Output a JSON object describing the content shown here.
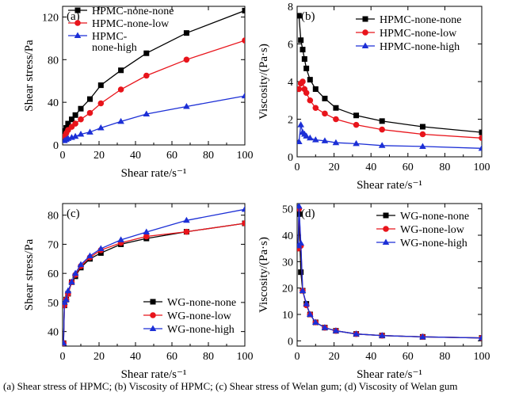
{
  "caption": "(a) Shear stress of HPMC; (b) Viscosity of HPMC; (c) Shear stress of Welan gum; (d) Viscosity of Welan gum",
  "colors": {
    "none": "#000000",
    "low": "#e8141b",
    "high": "#1c2fd6"
  },
  "chart_data": [
    {
      "panel": "(a)",
      "type": "line",
      "xlabel": "Shear rate/s⁻¹",
      "ylabel": "Shear stress/Pa",
      "xlim": [
        0,
        100
      ],
      "ylim": [
        0,
        130
      ],
      "xticks": [
        0,
        20,
        40,
        60,
        80,
        100
      ],
      "yticks": [
        0,
        40,
        80,
        120
      ],
      "legend_position": "top-left",
      "series": [
        {
          "name": "HPMC-none-none",
          "legend": [
            "HPMC-none-none"
          ],
          "marker": "square",
          "color": "#000000",
          "x": [
            1,
            2,
            3,
            5,
            7,
            10,
            15,
            21,
            32,
            46,
            68,
            100
          ],
          "y": [
            13,
            16,
            20,
            24,
            28,
            34,
            43,
            56,
            70,
            86,
            105,
            126
          ]
        },
        {
          "name": "HPMC-none-low",
          "legend": [
            "HPMC-none-low"
          ],
          "marker": "circle",
          "color": "#e8141b",
          "x": [
            1,
            2,
            3,
            5,
            7,
            10,
            15,
            21,
            32,
            46,
            68,
            100
          ],
          "y": [
            8,
            11,
            14,
            17,
            20,
            24,
            30,
            39,
            52,
            65,
            80,
            98
          ]
        },
        {
          "name": "HPMC-none-high",
          "legend": [
            "HPMC-",
            "none-high"
          ],
          "marker": "triangle",
          "color": "#1c2fd6",
          "x": [
            1,
            2,
            3,
            5,
            7,
            10,
            15,
            21,
            32,
            46,
            68,
            100
          ],
          "y": [
            4,
            5,
            6,
            7,
            8,
            10,
            12,
            16,
            22,
            29,
            36,
            46
          ]
        }
      ]
    },
    {
      "panel": "(b)",
      "type": "line",
      "xlabel": "Shear rate/s⁻¹",
      "ylabel": "Viscosity/(Pa·s)",
      "xlim": [
        0,
        100
      ],
      "ylim": [
        0,
        8
      ],
      "xticks": [
        0,
        20,
        40,
        60,
        80,
        100
      ],
      "yticks": [
        0,
        2,
        4,
        6,
        8
      ],
      "legend_position": "top-right",
      "series": [
        {
          "name": "HPMC-none-none",
          "marker": "square",
          "color": "#000000",
          "x": [
            1,
            2,
            3,
            4,
            5,
            7,
            10,
            15,
            21,
            32,
            46,
            68,
            100
          ],
          "y": [
            7.5,
            6.2,
            5.7,
            5.2,
            4.7,
            4.1,
            3.6,
            3.1,
            2.6,
            2.2,
            1.9,
            1.6,
            1.3
          ]
        },
        {
          "name": "HPMC-none-low",
          "marker": "circle",
          "color": "#e8141b",
          "x": [
            1,
            2,
            3,
            4,
            5,
            7,
            10,
            15,
            21,
            32,
            46,
            68,
            100
          ],
          "y": [
            3.6,
            3.9,
            4.0,
            3.6,
            3.4,
            3.0,
            2.6,
            2.3,
            2.0,
            1.7,
            1.45,
            1.2,
            1.0
          ]
        },
        {
          "name": "HPMC-none-high",
          "marker": "triangle",
          "color": "#1c2fd6",
          "x": [
            1,
            2,
            3,
            4,
            5,
            7,
            10,
            15,
            21,
            32,
            46,
            68,
            100
          ],
          "y": [
            0.8,
            1.7,
            1.3,
            1.2,
            1.1,
            1.0,
            0.9,
            0.85,
            0.75,
            0.7,
            0.6,
            0.55,
            0.45
          ]
        }
      ]
    },
    {
      "panel": "(c)",
      "type": "line",
      "xlabel": "Shear rate/s⁻¹",
      "ylabel": "Shear stress/Pa",
      "xlim": [
        0,
        100
      ],
      "ylim": [
        35,
        84
      ],
      "xticks": [
        0,
        20,
        40,
        60,
        80,
        100
      ],
      "yticks": [
        40,
        50,
        60,
        70,
        80
      ],
      "legend_position": "bottom-right",
      "series": [
        {
          "name": "WG-none-none",
          "marker": "square",
          "color": "#000000",
          "x": [
            0.5,
            1,
            2,
            3,
            5,
            7,
            10,
            15,
            21,
            32,
            46,
            68,
            100
          ],
          "y": [
            36,
            49,
            51,
            53,
            57,
            59,
            62,
            65,
            67,
            70,
            72,
            74.3,
            77.2
          ]
        },
        {
          "name": "WG-none-low",
          "marker": "circle",
          "color": "#e8141b",
          "x": [
            0.5,
            1,
            2,
            3,
            5,
            7,
            10,
            15,
            21,
            32,
            46,
            68,
            100
          ],
          "y": [
            36,
            49,
            51,
            53,
            57,
            59.5,
            62.5,
            65.5,
            68,
            70.5,
            72.7,
            74.3,
            77.2
          ]
        },
        {
          "name": "WG-none-high",
          "marker": "triangle",
          "color": "#1c2fd6",
          "x": [
            0.5,
            1,
            2,
            3,
            5,
            7,
            10,
            15,
            21,
            32,
            46,
            68,
            100
          ],
          "y": [
            36,
            50,
            51,
            54,
            57,
            60,
            63,
            66,
            68.5,
            71.5,
            74.2,
            78.2,
            82
          ]
        }
      ]
    },
    {
      "panel": "(d)",
      "type": "line",
      "xlabel": "Shear rate/s⁻¹",
      "ylabel": "Viscosity/(Pa·s)",
      "xlim": [
        0,
        100
      ],
      "ylim": [
        -2,
        52
      ],
      "xticks": [
        0,
        20,
        40,
        60,
        80,
        100
      ],
      "yticks": [
        0,
        10,
        20,
        30,
        40,
        50
      ],
      "legend_position": "top-right",
      "series": [
        {
          "name": "WG-none-none",
          "marker": "square",
          "color": "#000000",
          "x": [
            0.5,
            1,
            2,
            3,
            5,
            7,
            10,
            15,
            21,
            32,
            46,
            68,
            100
          ],
          "y": [
            35,
            48,
            26,
            19,
            14,
            10,
            7,
            5,
            3.8,
            2.6,
            2.0,
            1.5,
            1.1
          ]
        },
        {
          "name": "WG-none-low",
          "marker": "circle",
          "color": "#e8141b",
          "x": [
            0.5,
            1,
            2,
            3,
            5,
            7,
            10,
            15,
            21,
            32,
            46,
            68,
            100
          ],
          "y": [
            35,
            50,
            36,
            19,
            13.5,
            10,
            7,
            5,
            3.8,
            2.6,
            2.0,
            1.5,
            1.1
          ]
        },
        {
          "name": "WG-none-high",
          "marker": "triangle",
          "color": "#1c2fd6",
          "x": [
            0.5,
            1,
            2,
            3,
            5,
            7,
            10,
            15,
            21,
            32,
            46,
            68,
            100
          ],
          "y": [
            36,
            51,
            37,
            19,
            14,
            10,
            7,
            5,
            3.8,
            2.6,
            2.0,
            1.5,
            1.1
          ]
        }
      ]
    }
  ]
}
